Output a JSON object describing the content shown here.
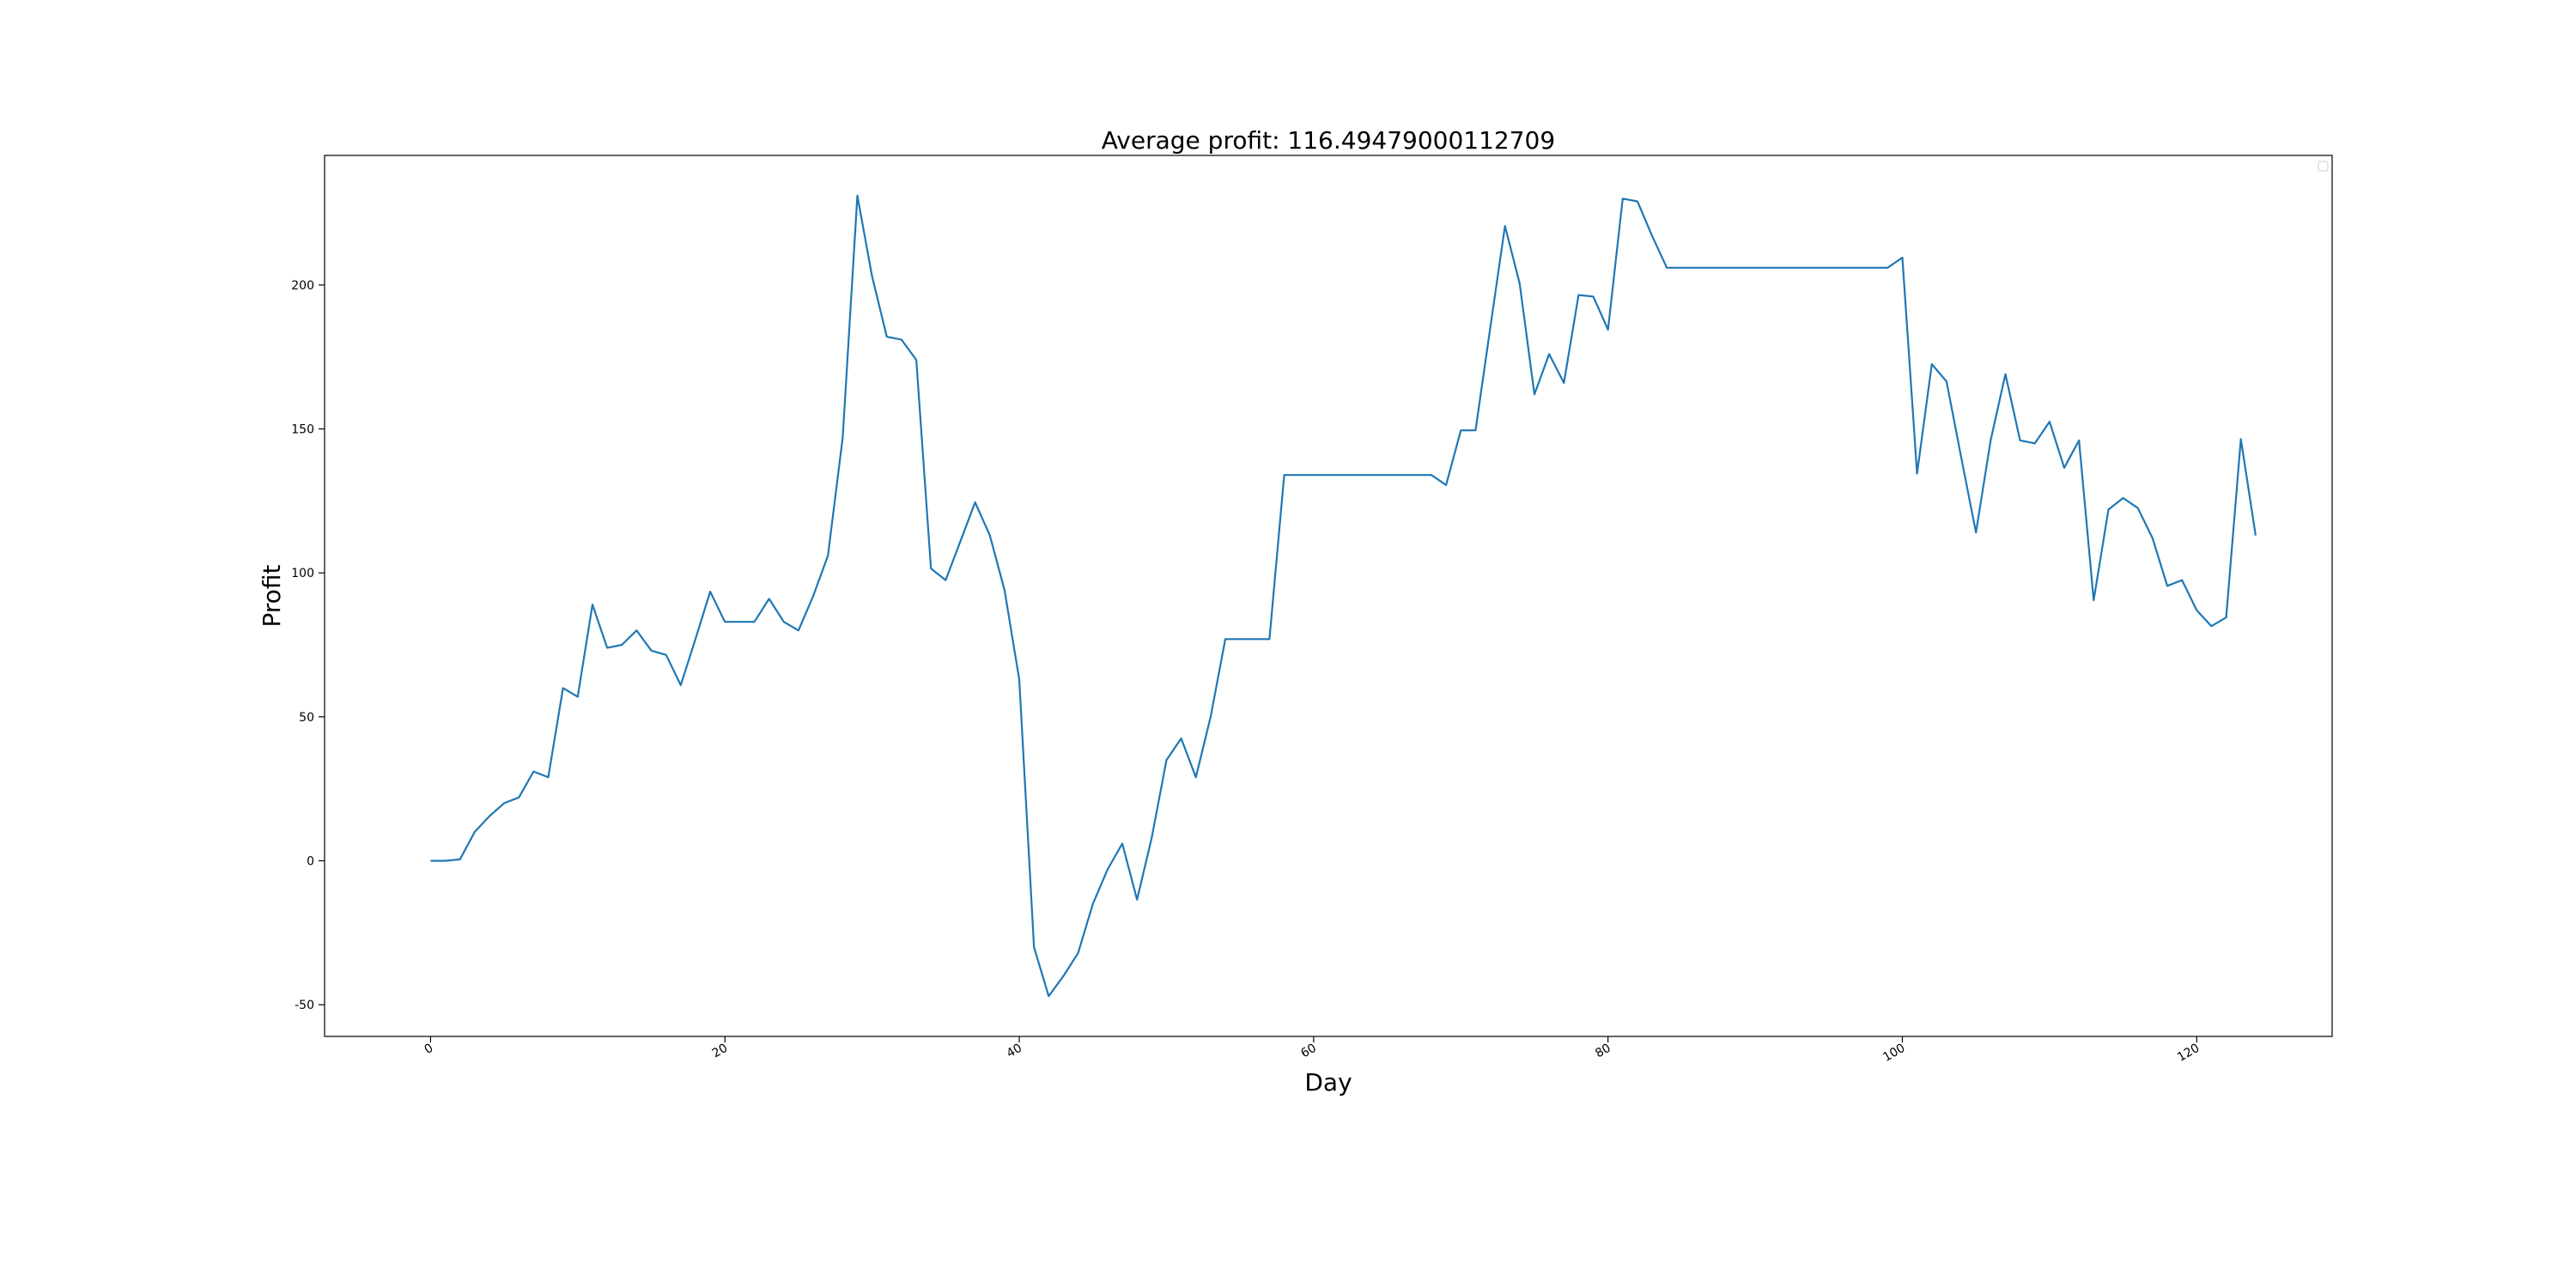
{
  "chart_data": {
    "type": "line",
    "title": "Average profit: 116.49479000112709",
    "xlabel": "Day",
    "ylabel": "Profit",
    "xlim": [
      -7.2,
      129.2
    ],
    "ylim": [
      -61,
      245
    ],
    "xticks": [
      0,
      20,
      40,
      60,
      80,
      100,
      120
    ],
    "yticks": [
      -50,
      0,
      50,
      100,
      150,
      200
    ],
    "grid": false,
    "legend": "top-right (empty)",
    "series": [
      {
        "color": "#1f77b4",
        "x": [
          0,
          1,
          2,
          3,
          4,
          5,
          6,
          7,
          8,
          9,
          10,
          11,
          12,
          13,
          14,
          15,
          16,
          17,
          18,
          19,
          20,
          21,
          22,
          23,
          24,
          25,
          26,
          27,
          28,
          29,
          30,
          31,
          32,
          33,
          34,
          35,
          36,
          37,
          38,
          39,
          40,
          41,
          42,
          43,
          44,
          45,
          46,
          47,
          48,
          49,
          50,
          51,
          52,
          53,
          54,
          55,
          56,
          57,
          58,
          59,
          60,
          61,
          62,
          63,
          64,
          65,
          66,
          67,
          68,
          69,
          70,
          71,
          72,
          73,
          74,
          75,
          76,
          77,
          78,
          79,
          80,
          81,
          82,
          83,
          84,
          85,
          86,
          87,
          88,
          89,
          90,
          91,
          92,
          93,
          94,
          95,
          96,
          97,
          98,
          99,
          100,
          101,
          102,
          103,
          104,
          105,
          106,
          107,
          108,
          109,
          110,
          111,
          112,
          113,
          114,
          115,
          116,
          117,
          118,
          119,
          120,
          121,
          122,
          123,
          124
        ],
        "values": [
          0,
          0,
          0.5,
          10,
          15.5,
          20,
          22,
          31,
          29,
          60,
          57,
          89,
          74,
          75,
          80,
          73,
          71.5,
          61,
          77,
          93.5,
          83,
          83,
          83,
          91,
          83,
          80,
          92,
          106,
          147,
          231,
          203,
          182,
          181,
          174,
          101.5,
          97.5,
          111,
          124.5,
          113,
          94,
          63,
          -30,
          -47,
          -40,
          -32,
          -15,
          -3,
          6,
          -13.5,
          8,
          35,
          42.5,
          29,
          50,
          77,
          77,
          77,
          77,
          134,
          134,
          134,
          134,
          134,
          134,
          134,
          134,
          134,
          134,
          134,
          130.5,
          149.5,
          149.5,
          185,
          220.5,
          200.5,
          162,
          176,
          166,
          196.5,
          196,
          184.5,
          230,
          229,
          217,
          206,
          206,
          206,
          206,
          206,
          206,
          206,
          206,
          206,
          206,
          206,
          206,
          206,
          206,
          206,
          206,
          209.5,
          134.5,
          172.5,
          166.5,
          140,
          114,
          146,
          169,
          146,
          145,
          152.5,
          136.5,
          146,
          90.5,
          122,
          126,
          122.5,
          112,
          95.5,
          97.5,
          87,
          81.5,
          84.5,
          146.5,
          113
        ]
      }
    ]
  }
}
